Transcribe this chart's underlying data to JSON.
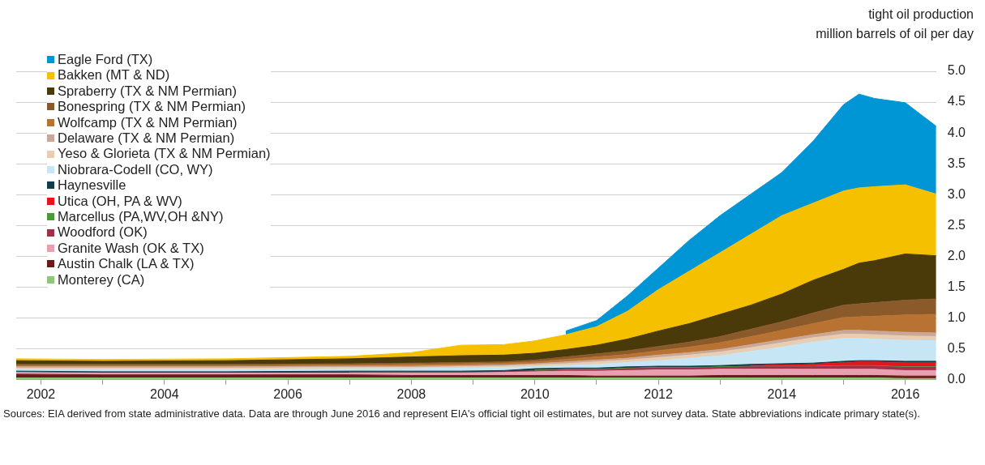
{
  "chart_data": {
    "type": "area",
    "stacked": true,
    "ylabel": "tight oil production\nmillion barrels of oil per day",
    "x": [
      2001.6,
      2003,
      2005,
      2007,
      2008,
      2008.8,
      2009.5,
      2010,
      2010.5,
      2011,
      2011.5,
      2012,
      2012.5,
      2013,
      2013.5,
      2014,
      2014.5,
      2015,
      2015.25,
      2015.5,
      2016,
      2016.5
    ],
    "series": [
      {
        "name": "Monterey (CA)",
        "color": "#8cc878",
        "values": [
          0.03,
          0.03,
          0.03,
          0.03,
          0.03,
          0.03,
          0.03,
          0.03,
          0.03,
          0.03,
          0.03,
          0.03,
          0.03,
          0.03,
          0.03,
          0.03,
          0.03,
          0.03,
          0.03,
          0.03,
          0.02,
          0.02
        ]
      },
      {
        "name": "Austin Chalk (LA & TX)",
        "color": "#6b1a1a",
        "values": [
          0.06,
          0.05,
          0.05,
          0.05,
          0.04,
          0.04,
          0.04,
          0.04,
          0.04,
          0.03,
          0.03,
          0.03,
          0.03,
          0.04,
          0.04,
          0.04,
          0.04,
          0.04,
          0.04,
          0.04,
          0.04,
          0.04
        ]
      },
      {
        "name": "Granite Wash (OK & TX)",
        "color": "#e8a0b0",
        "values": [
          0.03,
          0.03,
          0.03,
          0.03,
          0.04,
          0.04,
          0.05,
          0.06,
          0.07,
          0.08,
          0.09,
          0.1,
          0.1,
          0.1,
          0.1,
          0.1,
          0.1,
          0.1,
          0.1,
          0.1,
          0.09,
          0.09
        ]
      },
      {
        "name": "Woodford (OK)",
        "color": "#a0304a",
        "values": [
          null,
          null,
          null,
          0.01,
          0.01,
          0.01,
          0.01,
          0.02,
          0.02,
          0.02,
          0.03,
          0.03,
          0.03,
          0.03,
          0.04,
          0.04,
          0.04,
          0.05,
          0.05,
          0.05,
          0.05,
          0.05
        ]
      },
      {
        "name": "Marcellus (PA,WV,OH &NY)",
        "color": "#4a9a3a",
        "values": [
          null,
          null,
          null,
          null,
          null,
          null,
          null,
          0.01,
          0.01,
          0.01,
          0.01,
          0.01,
          0.01,
          0.01,
          0.01,
          0.01,
          0.01,
          0.01,
          0.01,
          0.01,
          0.01,
          0.01
        ]
      },
      {
        "name": "Utica (OH, PA & WV)",
        "color": "#e8141b",
        "values": [
          null,
          null,
          null,
          null,
          null,
          null,
          null,
          null,
          null,
          null,
          null,
          null,
          null,
          null,
          0.01,
          0.02,
          0.03,
          0.05,
          0.06,
          0.06,
          0.07,
          0.07
        ]
      },
      {
        "name": "Haynesville",
        "color": "#0f3d4a",
        "values": [
          0.02,
          0.02,
          0.02,
          0.02,
          0.02,
          0.02,
          0.02,
          0.02,
          0.02,
          0.02,
          0.02,
          0.02,
          0.02,
          0.02,
          0.02,
          0.02,
          0.02,
          0.02,
          0.02,
          0.02,
          0.02,
          0.02
        ]
      },
      {
        "name": "Niobrara-Codell (CO, WY)",
        "color": "#c6e6f5",
        "values": [
          0.03,
          0.04,
          0.04,
          0.04,
          0.04,
          0.05,
          0.05,
          0.03,
          0.04,
          0.06,
          0.07,
          0.09,
          0.13,
          0.16,
          0.21,
          0.27,
          0.34,
          0.37,
          0.36,
          0.35,
          0.34,
          0.33
        ]
      },
      {
        "name": "Yeso & Glorieta (TX & NM Permian)",
        "color": "#e8cdb0",
        "values": [
          0.02,
          0.02,
          0.02,
          0.02,
          0.02,
          0.02,
          0.02,
          0.03,
          0.03,
          0.04,
          0.04,
          0.05,
          0.05,
          0.06,
          0.06,
          0.07,
          0.07,
          0.07,
          0.07,
          0.07,
          0.07,
          0.07
        ]
      },
      {
        "name": "Delaware (TX & NM Permian)",
        "color": "#c9a89a",
        "values": [
          0.02,
          0.02,
          0.02,
          0.02,
          0.02,
          0.02,
          0.02,
          0.02,
          0.03,
          0.03,
          0.03,
          0.04,
          0.04,
          0.04,
          0.05,
          0.05,
          0.05,
          0.06,
          0.06,
          0.06,
          0.06,
          0.06
        ]
      },
      {
        "name": "Wolfcamp (TX & NM Permian)",
        "color": "#b87333",
        "values": [
          0.02,
          0.02,
          0.02,
          0.02,
          0.03,
          0.03,
          0.03,
          0.03,
          0.04,
          0.05,
          0.06,
          0.07,
          0.09,
          0.11,
          0.13,
          0.15,
          0.18,
          0.21,
          0.22,
          0.24,
          0.28,
          0.3
        ]
      },
      {
        "name": "Bonespring (TX & NM Permian)",
        "color": "#8b5a2b",
        "values": [
          0.02,
          0.02,
          0.02,
          0.02,
          0.02,
          0.02,
          0.02,
          0.03,
          0.04,
          0.05,
          0.06,
          0.07,
          0.08,
          0.1,
          0.12,
          0.14,
          0.17,
          0.2,
          0.21,
          0.22,
          0.24,
          0.25
        ]
      },
      {
        "name": "Spraberry (TX & NM Permian)",
        "color": "#4a3a0a",
        "values": [
          0.06,
          0.05,
          0.06,
          0.08,
          0.1,
          0.11,
          0.11,
          0.11,
          0.12,
          0.14,
          0.19,
          0.25,
          0.3,
          0.36,
          0.39,
          0.45,
          0.53,
          0.58,
          0.66,
          0.68,
          0.75,
          0.7
        ]
      },
      {
        "name": "Bakken (MT & ND)",
        "color": "#f5c000",
        "values": [
          0.03,
          0.03,
          0.03,
          0.04,
          0.07,
          0.17,
          0.17,
          0.2,
          0.24,
          0.3,
          0.45,
          0.67,
          0.85,
          1.0,
          1.15,
          1.27,
          1.25,
          1.27,
          1.22,
          1.2,
          1.12,
          1.0
        ]
      },
      {
        "name": "Eagle Ford (TX)",
        "color": "#0096d6",
        "values": [
          null,
          null,
          null,
          null,
          null,
          null,
          null,
          null,
          0.06,
          0.1,
          0.25,
          0.35,
          0.5,
          0.6,
          0.65,
          0.7,
          1.0,
          1.4,
          1.52,
          1.43,
          1.33,
          1.1
        ]
      }
    ],
    "xlim": [
      2001.6,
      2016.5
    ],
    "xticks": [
      2002,
      {
        "value": 2003,
        "label": null
      },
      2004,
      {
        "value": 2005,
        "label": null
      },
      2006,
      {
        "value": 2007,
        "label": null
      },
      2008,
      {
        "value": 2009,
        "label": null
      },
      2010,
      {
        "value": 2011,
        "label": null
      },
      2012,
      {
        "value": 2013,
        "label": null
      },
      2014,
      {
        "value": 2015,
        "label": null
      },
      2016
    ],
    "ylim": [
      0,
      5
    ],
    "yticks": [
      {
        "value": 0,
        "label": "0.0"
      },
      {
        "value": 0.5,
        "label": "0.5"
      },
      {
        "value": 1,
        "label": "1.0"
      },
      {
        "value": 1.5,
        "label": "1.5"
      },
      {
        "value": 2,
        "label": "2.0"
      },
      {
        "value": 2.5,
        "label": "2.5"
      },
      {
        "value": 3,
        "label": "3.0"
      },
      {
        "value": 3.5,
        "label": "3.5"
      },
      {
        "value": 4,
        "label": "4.0"
      },
      {
        "value": 4.5,
        "label": "4.5"
      },
      {
        "value": 5,
        "label": "5.0"
      }
    ],
    "grid": "y",
    "legend": "top left",
    "marker": "none",
    "annotations": [
      "Sources: EIA derived from state administrative data. Data are through June 2016 and represent EIA's official tight oil estimates, but are not survey data. State abbreviations indicate primary state(s)."
    ]
  }
}
